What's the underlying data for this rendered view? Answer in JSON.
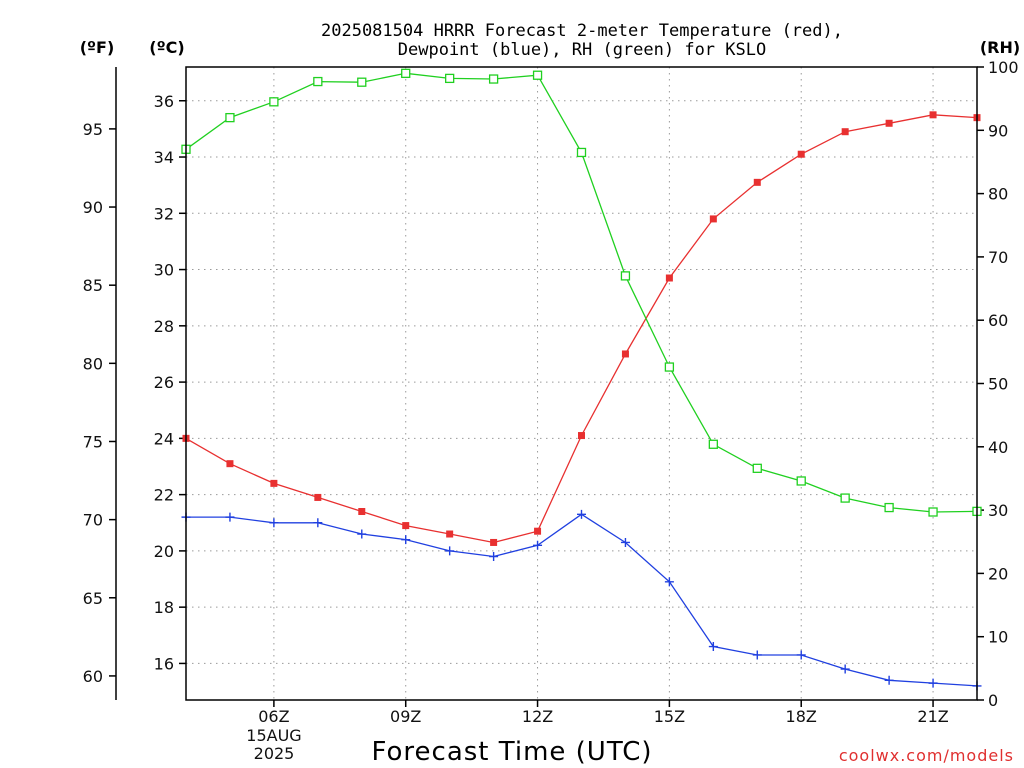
{
  "title": {
    "line1": "2025081504 HRRR Forecast 2-meter Temperature (red),",
    "line2": "Dewpoint (blue), RH (green) for KSLO"
  },
  "units": {
    "fahrenheit": "(ºF)",
    "celsius": "(ºC)",
    "rh": "(RH)"
  },
  "date_label": {
    "day": "15AUG",
    "year": "2025"
  },
  "credit": "coolwx.com/models",
  "colors": {
    "temperature": "#e83030",
    "dewpoint": "#2040e0",
    "rh": "#20d020"
  },
  "chart_data": {
    "type": "line",
    "title": "2025081504 HRRR Forecast 2-meter Temperature (red), Dewpoint (blue), RH (green) for KSLO",
    "xlabel": "Forecast Time (UTC)",
    "x": [
      "04Z",
      "05Z",
      "06Z",
      "07Z",
      "08Z",
      "09Z",
      "10Z",
      "11Z",
      "12Z",
      "13Z",
      "14Z",
      "15Z",
      "16Z",
      "17Z",
      "18Z",
      "19Z",
      "20Z",
      "21Z",
      "22Z"
    ],
    "x_ticks": [
      "06Z",
      "09Z",
      "12Z",
      "15Z",
      "18Z",
      "21Z"
    ],
    "xlim_hours": [
      4,
      22
    ],
    "y_celsius": {
      "label": "(ºC)",
      "ylim": [
        14.7,
        37.2
      ],
      "ticks": [
        16,
        18,
        20,
        22,
        24,
        26,
        28,
        30,
        32,
        34,
        36
      ]
    },
    "y_fahrenheit": {
      "label": "(ºF)",
      "ticks": [
        60,
        65,
        70,
        75,
        80,
        85,
        90,
        95
      ]
    },
    "y_rh": {
      "label": "(RH)",
      "ylim": [
        0,
        100
      ],
      "ticks": [
        0,
        10,
        20,
        30,
        40,
        50,
        60,
        70,
        80,
        90,
        100
      ]
    },
    "grid": true,
    "series": [
      {
        "name": "Temperature (red)",
        "axis": "celsius",
        "color": "#e83030",
        "marker": "filled-square",
        "values": [
          24.0,
          23.1,
          22.4,
          21.9,
          21.4,
          20.9,
          20.6,
          20.3,
          20.7,
          24.1,
          27.0,
          29.7,
          31.8,
          33.1,
          34.1,
          34.9,
          35.2,
          35.5,
          35.4
        ]
      },
      {
        "name": "Dewpoint (blue)",
        "axis": "celsius",
        "color": "#2040e0",
        "marker": "plus",
        "values": [
          21.2,
          21.2,
          21.0,
          21.0,
          20.6,
          20.4,
          20.0,
          19.8,
          20.2,
          21.3,
          20.3,
          18.9,
          16.6,
          16.3,
          16.3,
          15.8,
          15.4,
          15.3,
          15.2
        ]
      },
      {
        "name": "RH (green)",
        "axis": "rh",
        "color": "#20d020",
        "marker": "open-square",
        "values": [
          87.0,
          92.0,
          94.5,
          97.7,
          97.6,
          99.0,
          98.2,
          98.1,
          98.7,
          86.5,
          67.0,
          52.6,
          40.4,
          36.6,
          34.6,
          31.9,
          30.4,
          29.7,
          29.8
        ]
      }
    ]
  }
}
